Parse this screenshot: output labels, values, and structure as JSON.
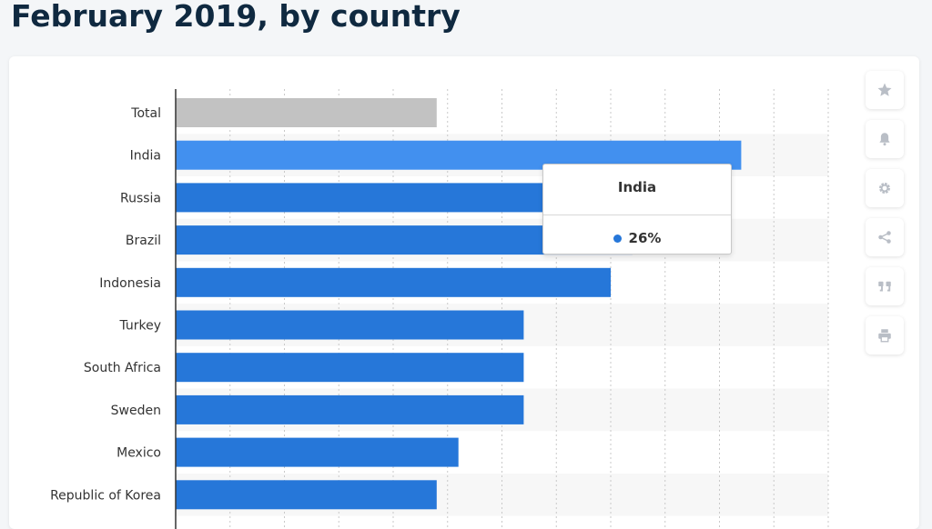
{
  "page": {
    "title": "February 2019, by country"
  },
  "chart_data": {
    "type": "bar",
    "orientation": "horizontal",
    "categories": [
      "Total",
      "India",
      "Russia",
      "Brazil",
      "Indonesia",
      "Turkey",
      "South Africa",
      "Sweden",
      "Mexico",
      "Republic of Korea"
    ],
    "values": [
      12,
      26,
      22,
      21,
      20,
      16,
      16,
      16,
      13,
      12
    ],
    "unit": "%",
    "xlim": [
      0,
      30
    ],
    "grid": true,
    "highlighted_category": "India",
    "colors": {
      "bar": "#2677d9",
      "highlight": "#4290ef",
      "total": "#c2c2c2"
    }
  },
  "tooltip": {
    "title": "India",
    "value": "26%"
  },
  "toolbar": {
    "items": [
      {
        "icon": "star-icon"
      },
      {
        "icon": "bell-icon"
      },
      {
        "icon": "gear-icon"
      },
      {
        "icon": "share-icon"
      },
      {
        "icon": "quote-icon"
      },
      {
        "icon": "print-icon"
      }
    ]
  }
}
